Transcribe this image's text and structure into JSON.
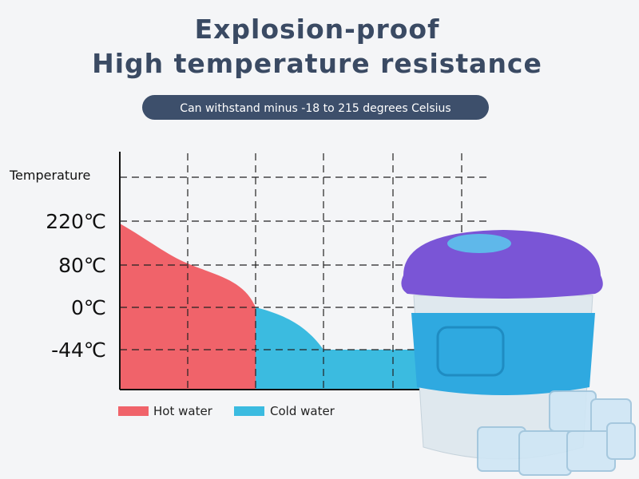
{
  "header": {
    "title": "Explosion-proof",
    "subtitle": "High temperature resistance",
    "note": "Can withstand minus -18 to 215 degrees Celsius"
  },
  "chart": {
    "axis_label": "Temperature",
    "levels": [
      "220℃",
      "80℃",
      "0℃",
      "-44℃"
    ],
    "legend": [
      "Hot water",
      "Cold water"
    ]
  }
}
